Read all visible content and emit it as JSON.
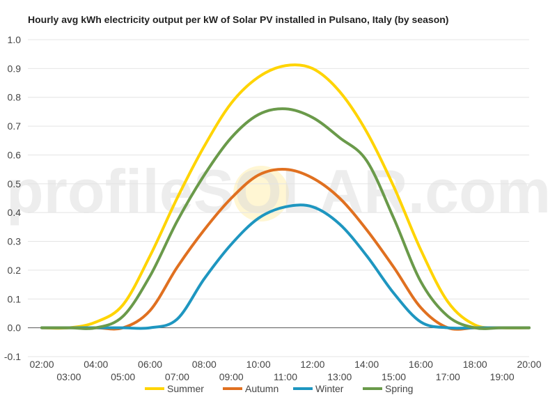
{
  "chart_data": {
    "type": "line",
    "title": "Hourly avg kWh electricity output per kW of Solar PV installed in Pulsano, Italy (by season)",
    "xlabel": "",
    "ylabel": "",
    "ylim": [
      -0.1,
      1.0
    ],
    "yticks": [
      -0.1,
      0.0,
      0.1,
      0.2,
      0.3,
      0.4,
      0.5,
      0.6,
      0.7,
      0.8,
      0.9,
      1.0
    ],
    "ytick_labels": [
      "-0.1",
      "0.0",
      "0.1",
      "0.2",
      "0.3",
      "0.4",
      "0.5",
      "0.6",
      "0.7",
      "0.8",
      "0.9",
      "1.0"
    ],
    "x_labels": [
      "02:00",
      "03:00",
      "04:00",
      "05:00",
      "06:00",
      "07:00",
      "08:00",
      "09:00",
      "10:00",
      "11:00",
      "12:00",
      "13:00",
      "14:00",
      "15:00",
      "16:00",
      "17:00",
      "18:00",
      "19:00",
      "20:00"
    ],
    "x": [
      2,
      3,
      4,
      5,
      6,
      7,
      8,
      9,
      10,
      11,
      12,
      13,
      14,
      15,
      16,
      17,
      18,
      19,
      20
    ],
    "grid": true,
    "legend_position": "bottom",
    "watermark": "profileSOLAR.com",
    "series": [
      {
        "name": "Summer",
        "color": "#FFD400",
        "values": [
          0.0,
          0.0,
          0.02,
          0.08,
          0.25,
          0.45,
          0.63,
          0.78,
          0.87,
          0.91,
          0.9,
          0.82,
          0.68,
          0.49,
          0.27,
          0.09,
          0.01,
          0.0,
          0.0
        ]
      },
      {
        "name": "Autumn",
        "color": "#E07020",
        "values": [
          0.0,
          0.0,
          0.0,
          0.0,
          0.06,
          0.21,
          0.34,
          0.45,
          0.53,
          0.55,
          0.52,
          0.45,
          0.34,
          0.21,
          0.07,
          0.0,
          0.0,
          0.0,
          0.0
        ]
      },
      {
        "name": "Winter",
        "color": "#1E96C0",
        "values": [
          0.0,
          0.0,
          0.0,
          0.0,
          0.0,
          0.03,
          0.17,
          0.29,
          0.38,
          0.42,
          0.42,
          0.36,
          0.25,
          0.12,
          0.02,
          0.0,
          0.0,
          0.0,
          0.0
        ]
      },
      {
        "name": "Spring",
        "color": "#6A9A4A",
        "values": [
          0.0,
          0.0,
          0.0,
          0.04,
          0.18,
          0.37,
          0.53,
          0.66,
          0.74,
          0.76,
          0.73,
          0.66,
          0.58,
          0.38,
          0.16,
          0.04,
          0.0,
          0.0,
          0.0
        ]
      }
    ]
  }
}
